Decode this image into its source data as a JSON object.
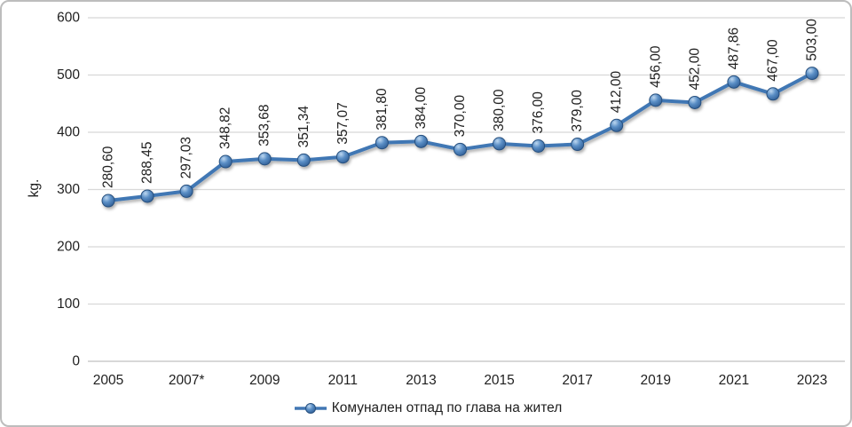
{
  "chart": {
    "ylabel": "kg.",
    "legend_label": "Комунален отпад по глава на жител"
  },
  "chart_data": {
    "type": "line",
    "title": "",
    "xlabel": "",
    "ylabel": "kg.",
    "categories": [
      "2005",
      "2006",
      "2007*",
      "2008",
      "2009",
      "2010",
      "2011",
      "2012",
      "2013",
      "2014",
      "2015",
      "2016",
      "2017",
      "2018",
      "2019",
      "2020",
      "2021",
      "2022",
      "2023"
    ],
    "values": [
      280.6,
      288.45,
      297.03,
      348.82,
      353.68,
      351.34,
      357.07,
      381.8,
      384.0,
      370.0,
      380.0,
      376.0,
      379.0,
      412.0,
      456.0,
      452.0,
      487.86,
      467.0,
      503.0
    ],
    "data_labels": [
      "280,60",
      "288,45",
      "297,03",
      "348,82",
      "353,68",
      "351,34",
      "357,07",
      "381,80",
      "384,00",
      "370,00",
      "380,00",
      "376,00",
      "379,00",
      "412,00",
      "456,00",
      "452,00",
      "487,86",
      "467,00",
      "503,00"
    ],
    "x_tick_labels": [
      "2005",
      "2007*",
      "2009",
      "2011",
      "2013",
      "2015",
      "2017",
      "2019",
      "2021",
      "2023"
    ],
    "y_tick_labels": [
      "0",
      "100",
      "200",
      "300",
      "400",
      "500",
      "600"
    ],
    "ylim": [
      0,
      600
    ],
    "ytick_step": 100,
    "grid": true,
    "legend": [
      "Комунален отпад по глава на жител"
    ],
    "legend_position": "bottom",
    "line_color": "#4177b4",
    "marker_fill_light": "#bdd7f0",
    "marker_fill_mid": "#5b8fc6",
    "marker_fill_dark": "#2e5c94",
    "marker_stroke": "#27507e",
    "gridline_color": "#d8d8d8",
    "axis_line_color": "#c0c0c0",
    "text_color": "#1f1f1f"
  }
}
